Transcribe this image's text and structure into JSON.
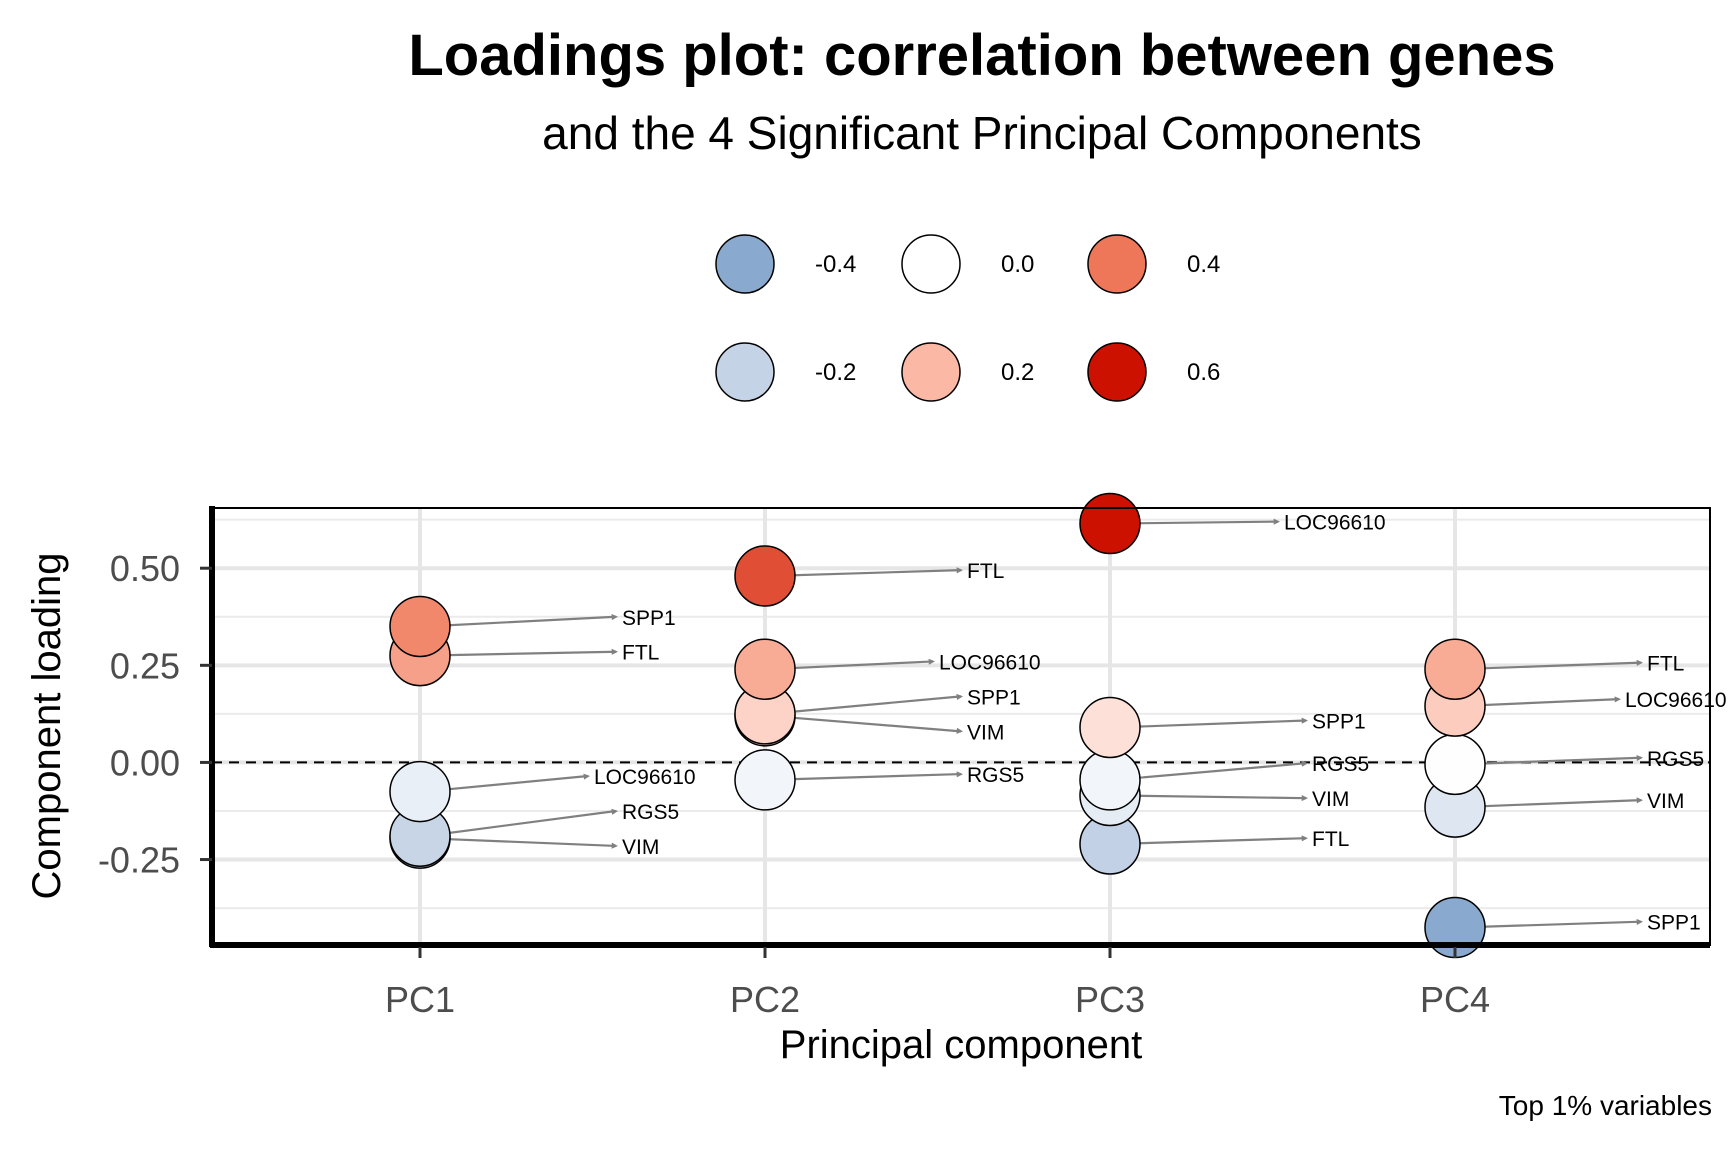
{
  "title": "Loadings plot: correlation between genes",
  "subtitle": "and the 4 Significant Principal Components",
  "caption": "Top 1% variables",
  "chart_data": {
    "type": "scatter",
    "title": "Loadings plot: correlation between genes",
    "subtitle": "and the 4 Significant Principal Components",
    "xlabel": "Principal component",
    "ylabel": "Component loading",
    "categories": [
      "PC1",
      "PC2",
      "PC3",
      "PC4"
    ],
    "ylim": [
      -0.47,
      0.655
    ],
    "yticks": [
      -0.25,
      0.0,
      0.25,
      0.5
    ],
    "ytick_labels": [
      "-0.25",
      "0.00",
      "0.25",
      "0.50"
    ],
    "zero_line": "dashed",
    "grid": true,
    "legend_position": "top",
    "legend": [
      {
        "label": "-0.4",
        "value": -0.4,
        "color": "#8AA9CE"
      },
      {
        "label": "0.0",
        "value": 0.0,
        "color": "#FFFFFF"
      },
      {
        "label": "0.4",
        "value": 0.4,
        "color": "#EE7759"
      },
      {
        "label": "-0.2",
        "value": -0.2,
        "color": "#C5D3E6"
      },
      {
        "label": "0.2",
        "value": 0.2,
        "color": "#FBB9A5"
      },
      {
        "label": "0.6",
        "value": 0.6,
        "color": "#CC1100"
      }
    ],
    "points": [
      {
        "pc": "PC1",
        "gene": "SPP1",
        "loading": 0.35,
        "label_loading": 0.375
      },
      {
        "pc": "PC1",
        "gene": "FTL",
        "loading": 0.275,
        "label_loading": 0.285
      },
      {
        "pc": "PC1",
        "gene": "LOC96610",
        "loading": -0.075,
        "label_loading": -0.035
      },
      {
        "pc": "PC1",
        "gene": "RGS5",
        "loading": -0.19,
        "label_loading": -0.125
      },
      {
        "pc": "PC1",
        "gene": "VIM",
        "loading": -0.195,
        "label_loading": -0.215
      },
      {
        "pc": "PC2",
        "gene": "FTL",
        "loading": 0.48,
        "label_loading": 0.495
      },
      {
        "pc": "PC2",
        "gene": "LOC96610",
        "loading": 0.24,
        "label_loading": 0.26
      },
      {
        "pc": "PC2",
        "gene": "SPP1",
        "loading": 0.125,
        "label_loading": 0.17
      },
      {
        "pc": "PC2",
        "gene": "VIM",
        "loading": 0.12,
        "label_loading": 0.08
      },
      {
        "pc": "PC2",
        "gene": "RGS5",
        "loading": -0.045,
        "label_loading": -0.03
      },
      {
        "pc": "PC3",
        "gene": "LOC96610",
        "loading": 0.615,
        "label_loading": 0.62
      },
      {
        "pc": "PC3",
        "gene": "SPP1",
        "loading": 0.09,
        "label_loading": 0.108
      },
      {
        "pc": "PC3",
        "gene": "RGS5",
        "loading": -0.045,
        "label_loading": -0.002
      },
      {
        "pc": "PC3",
        "gene": "VIM",
        "loading": -0.085,
        "label_loading": -0.092
      },
      {
        "pc": "PC3",
        "gene": "FTL",
        "loading": -0.21,
        "label_loading": -0.195
      },
      {
        "pc": "PC4",
        "gene": "FTL",
        "loading": 0.24,
        "label_loading": 0.257
      },
      {
        "pc": "PC4",
        "gene": "LOC96610",
        "loading": 0.145,
        "label_loading": 0.163
      },
      {
        "pc": "PC4",
        "gene": "RGS5",
        "loading": -0.005,
        "label_loading": 0.012
      },
      {
        "pc": "PC4",
        "gene": "VIM",
        "loading": -0.115,
        "label_loading": -0.097
      },
      {
        "pc": "PC4",
        "gene": "SPP1",
        "loading": -0.425,
        "label_loading": -0.41
      }
    ]
  }
}
